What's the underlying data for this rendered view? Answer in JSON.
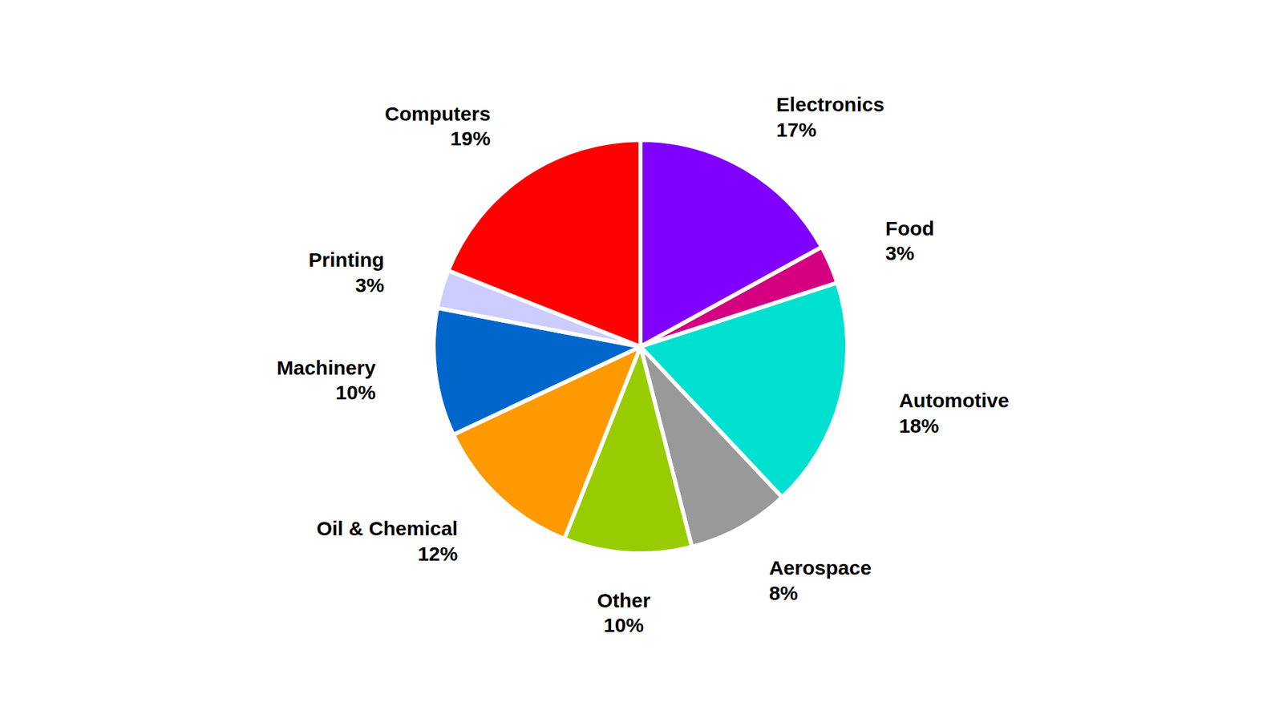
{
  "chart_data": {
    "type": "pie",
    "categories": [
      "Electronics",
      "Food",
      "Automotive",
      "Aerospace",
      "Other",
      "Oil & Chemical",
      "Machinery",
      "Printing",
      "Computers"
    ],
    "values": [
      17,
      3,
      18,
      8,
      10,
      12,
      10,
      3,
      19
    ],
    "value_labels": [
      "17%",
      "3%",
      "18%",
      "8%",
      "10%",
      "12%",
      "10%",
      "3%",
      "19%"
    ],
    "colors": [
      "#8000ff",
      "#d4007f",
      "#00e0d0",
      "#999999",
      "#99cc00",
      "#ff9900",
      "#0066cc",
      "#ccccff",
      "#ff0000"
    ],
    "data_labels": true
  }
}
